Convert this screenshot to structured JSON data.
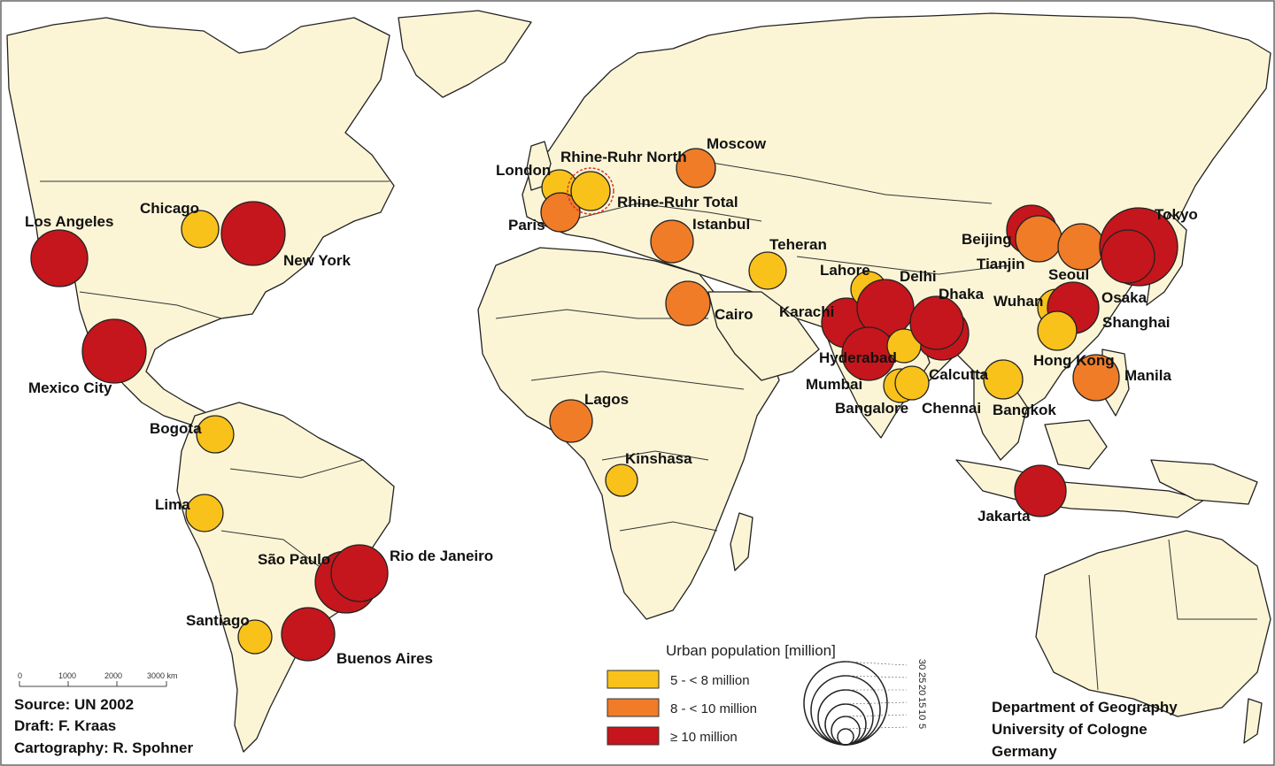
{
  "map": {
    "colors": {
      "land": "#fbf5d6",
      "ocean": "#ffffff",
      "class_5_8": "#f9c21a",
      "class_8_10": "#f07c28",
      "class_10_plus": "#c4161c",
      "stroke": "#222222"
    },
    "cities": [
      {
        "name": "Los Angeles",
        "population_class": "10_plus"
      },
      {
        "name": "Chicago",
        "population_class": "5_8"
      },
      {
        "name": "New York",
        "population_class": "10_plus"
      },
      {
        "name": "Mexico City",
        "population_class": "10_plus"
      },
      {
        "name": "Bogota",
        "population_class": "5_8"
      },
      {
        "name": "Lima",
        "population_class": "5_8"
      },
      {
        "name": "São Paulo",
        "population_class": "10_plus"
      },
      {
        "name": "Rio de Janeiro",
        "population_class": "10_plus"
      },
      {
        "name": "Santiago",
        "population_class": "5_8"
      },
      {
        "name": "Buenos Aires",
        "population_class": "10_plus"
      },
      {
        "name": "London",
        "population_class": "5_8"
      },
      {
        "name": "Paris",
        "population_class": "8_10"
      },
      {
        "name": "Rhine-Ruhr North",
        "population_class": "5_8"
      },
      {
        "name": "Rhine-Ruhr Total",
        "population_class": "8_10"
      },
      {
        "name": "Moscow",
        "population_class": "8_10"
      },
      {
        "name": "Istanbul",
        "population_class": "8_10"
      },
      {
        "name": "Teheran",
        "population_class": "5_8"
      },
      {
        "name": "Cairo",
        "population_class": "8_10"
      },
      {
        "name": "Lagos",
        "population_class": "8_10"
      },
      {
        "name": "Kinshasa",
        "population_class": "5_8"
      },
      {
        "name": "Karachi",
        "population_class": "10_plus"
      },
      {
        "name": "Lahore",
        "population_class": "5_8"
      },
      {
        "name": "Delhi",
        "population_class": "10_plus"
      },
      {
        "name": "Dhaka",
        "population_class": "10_plus"
      },
      {
        "name": "Mumbai",
        "population_class": "10_plus"
      },
      {
        "name": "Hyderabad",
        "population_class": "5_8"
      },
      {
        "name": "Calcutta",
        "population_class": "10_plus"
      },
      {
        "name": "Bangalore",
        "population_class": "5_8"
      },
      {
        "name": "Chennai",
        "population_class": "5_8"
      },
      {
        "name": "Bangkok",
        "population_class": "5_8"
      },
      {
        "name": "Beijing",
        "population_class": "10_plus"
      },
      {
        "name": "Tianjin",
        "population_class": "8_10"
      },
      {
        "name": "Seoul",
        "population_class": "8_10"
      },
      {
        "name": "Wuhan",
        "population_class": "5_8"
      },
      {
        "name": "Shanghai",
        "population_class": "10_plus"
      },
      {
        "name": "Hong Kong",
        "population_class": "5_8"
      },
      {
        "name": "Manila",
        "population_class": "8_10"
      },
      {
        "name": "Tokyo",
        "population_class": "10_plus"
      },
      {
        "name": "Osaka",
        "population_class": "10_plus"
      },
      {
        "name": "Jakarta",
        "population_class": "10_plus"
      }
    ]
  },
  "legend": {
    "title": "Urban population [million]",
    "classes": [
      {
        "label": "5 - < 8 million",
        "color": "#f9c21a"
      },
      {
        "label": "8 - < 10 million",
        "color": "#f07c28"
      },
      {
        "label": "≥ 10 million",
        "color": "#c4161c"
      }
    ],
    "size_values": [
      "30",
      "25",
      "20",
      "15",
      "10",
      "5"
    ]
  },
  "scale_bar": {
    "ticks": [
      "0",
      "1000",
      "2000",
      "3000 km"
    ]
  },
  "credits": {
    "source": "Source: UN 2002",
    "draft": "Draft: F. Kraas",
    "cartography": "Cartography: R. Spohner"
  },
  "institution": {
    "line1": "Department of Geography",
    "line2": "University of Cologne",
    "line3": "Germany"
  }
}
